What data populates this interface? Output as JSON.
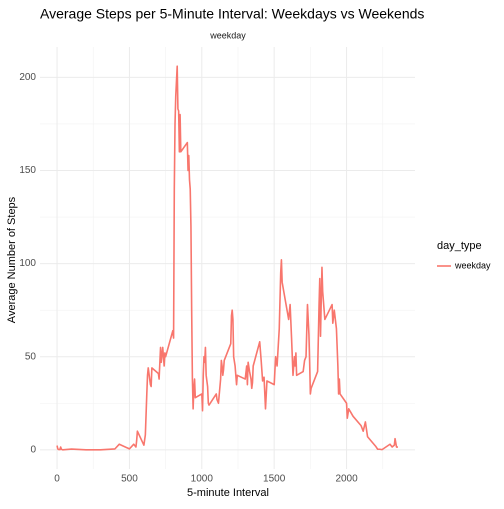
{
  "chart_data": {
    "type": "line",
    "title": "Average Steps per 5-Minute Interval: Weekdays vs Weekends",
    "facet_label": "weekday",
    "x_label": "5-minute Interval",
    "y_label": "Average Number of Steps",
    "legend_title": "day_type",
    "x": [
      0,
      5,
      10,
      20,
      25,
      30,
      40,
      100,
      200,
      300,
      400,
      430,
      500,
      530,
      545,
      550,
      555,
      600,
      610,
      620,
      625,
      630,
      640,
      645,
      650,
      655,
      700,
      705,
      715,
      720,
      730,
      740,
      745,
      750,
      800,
      805,
      810,
      815,
      820,
      830,
      835,
      840,
      845,
      850,
      855,
      900,
      905,
      910,
      915,
      920,
      925,
      930,
      935,
      940,
      945,
      950,
      955,
      1000,
      1005,
      1010,
      1015,
      1020,
      1025,
      1030,
      1040,
      1045,
      1050,
      1100,
      1105,
      1115,
      1130,
      1135,
      1140,
      1145,
      1150,
      1155,
      1200,
      1205,
      1210,
      1215,
      1220,
      1230,
      1240,
      1245,
      1300,
      1310,
      1315,
      1320,
      1330,
      1340,
      1345,
      1350,
      1355,
      1400,
      1410,
      1420,
      1430,
      1440,
      1450,
      1500,
      1510,
      1520,
      1535,
      1545,
      1550,
      1555,
      1600,
      1610,
      1620,
      1630,
      1640,
      1645,
      1650,
      1655,
      1700,
      1710,
      1720,
      1730,
      1740,
      1745,
      1750,
      1755,
      1800,
      1810,
      1815,
      1820,
      1825,
      1830,
      1835,
      1845,
      1850,
      1900,
      1905,
      1915,
      1930,
      1940,
      1945,
      1950,
      1955,
      2000,
      2005,
      2015,
      2030,
      2045,
      2100,
      2115,
      2130,
      2145,
      2200,
      2215,
      2230,
      2245,
      2300,
      2315,
      2330,
      2335,
      2345,
      2355
    ],
    "series": [
      {
        "name": "weekday",
        "color": "#F8766D",
        "values": [
          2.3,
          0.5,
          0.2,
          0.1,
          1.5,
          0.3,
          0,
          0.4,
          0,
          0,
          0.5,
          3,
          0.5,
          3,
          1.5,
          5,
          10,
          2.5,
          8,
          30,
          40,
          44,
          38,
          35,
          34,
          44,
          41,
          38,
          55,
          47,
          55,
          45,
          52,
          50,
          64,
          60,
          140,
          175,
          190,
          206,
          183,
          182,
          160,
          180,
          160,
          165,
          150,
          158,
          145,
          140,
          120,
          75,
          38,
          22,
          33,
          38,
          28,
          30,
          21,
          40,
          50,
          47,
          55,
          40,
          34,
          25,
          24,
          30,
          27,
          25,
          38,
          48,
          45,
          40,
          43,
          48,
          57,
          72,
          75,
          70,
          50,
          45,
          35,
          40,
          38,
          45,
          35,
          47,
          42,
          38,
          33,
          36,
          45,
          58,
          48,
          37,
          39,
          22,
          37,
          35,
          50,
          45,
          65,
          95,
          102,
          90,
          70,
          78,
          60,
          40,
          50,
          45,
          52,
          40,
          42,
          48,
          50,
          78,
          62,
          47,
          30,
          33,
          42,
          78,
          92,
          61,
          80,
          98,
          85,
          75,
          70,
          78,
          68,
          75,
          65,
          45,
          30,
          38,
          30,
          25,
          17,
          22,
          20,
          18,
          13,
          10,
          15,
          7,
          2,
          0.3,
          0.3,
          0.1,
          3,
          1.5,
          2.5,
          6,
          1.5,
          1.5
        ]
      }
    ],
    "xlim": [
      -117.75,
      2472.75
    ],
    "ylim": [
      -10.3,
      216.3
    ],
    "xticks": [
      0,
      500,
      1000,
      1500,
      2000
    ],
    "yticks": [
      0,
      50,
      100,
      150,
      200
    ],
    "x_minor_ticks": [
      250,
      750,
      1250,
      1750,
      2250
    ],
    "y_minor_ticks": [
      25,
      75,
      125,
      175
    ],
    "grid": true,
    "legend": "right"
  }
}
